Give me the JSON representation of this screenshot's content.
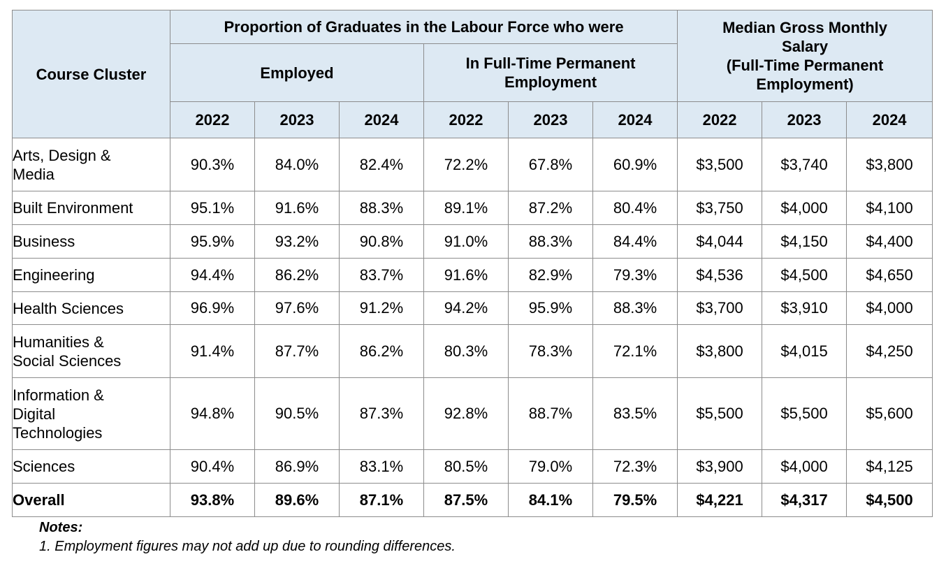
{
  "table": {
    "header": {
      "course_cluster": "Course Cluster",
      "proportion_group": "Proportion of Graduates in the Labour Force who were",
      "employed": "Employed",
      "ftpe_line1": "In Full-Time Permanent",
      "ftpe_line2": "Employment",
      "salary_line1": "Median Gross Monthly",
      "salary_line2": "Salary",
      "salary_line3": "(Full-Time Permanent",
      "salary_line4": "Employment)",
      "years": [
        "2022",
        "2023",
        "2024",
        "2022",
        "2023",
        "2024",
        "2022",
        "2023",
        "2024"
      ]
    },
    "rows": [
      {
        "name": [
          "Arts, Design &",
          "Media"
        ],
        "values": [
          "90.3%",
          "84.0%",
          "82.4%",
          "72.2%",
          "67.8%",
          "60.9%",
          "$3,500",
          "$3,740",
          "$3,800"
        ]
      },
      {
        "name": [
          "Built Environment"
        ],
        "values": [
          "95.1%",
          "91.6%",
          "88.3%",
          "89.1%",
          "87.2%",
          "80.4%",
          "$3,750",
          "$4,000",
          "$4,100"
        ]
      },
      {
        "name": [
          "Business"
        ],
        "values": [
          "95.9%",
          "93.2%",
          "90.8%",
          "91.0%",
          "88.3%",
          "84.4%",
          "$4,044",
          "$4,150",
          "$4,400"
        ]
      },
      {
        "name": [
          "Engineering"
        ],
        "values": [
          "94.4%",
          "86.2%",
          "83.7%",
          "91.6%",
          "82.9%",
          "79.3%",
          "$4,536",
          "$4,500",
          "$4,650"
        ]
      },
      {
        "name": [
          "Health Sciences"
        ],
        "values": [
          "96.9%",
          "97.6%",
          "91.2%",
          "94.2%",
          "95.9%",
          "88.3%",
          "$3,700",
          "$3,910",
          "$4,000"
        ]
      },
      {
        "name": [
          "Humanities &",
          "Social Sciences"
        ],
        "values": [
          "91.4%",
          "87.7%",
          "86.2%",
          "80.3%",
          "78.3%",
          "72.1%",
          "$3,800",
          "$4,015",
          "$4,250"
        ]
      },
      {
        "name": [
          "Information &",
          "Digital",
          "Technologies"
        ],
        "values": [
          "94.8%",
          "90.5%",
          "87.3%",
          "92.8%",
          "88.7%",
          "83.5%",
          "$5,500",
          "$5,500",
          "$5,600"
        ]
      },
      {
        "name": [
          "Sciences"
        ],
        "values": [
          "90.4%",
          "86.9%",
          "83.1%",
          "80.5%",
          "79.0%",
          "72.3%",
          "$3,900",
          "$4,000",
          "$4,125"
        ]
      },
      {
        "name": [
          "Overall"
        ],
        "values": [
          "93.8%",
          "89.6%",
          "87.1%",
          "87.5%",
          "84.1%",
          "79.5%",
          "$4,221",
          "$4,317",
          "$4,500"
        ],
        "overall": true
      }
    ]
  },
  "notes": {
    "title": "Notes:",
    "line1": "1. Employment figures may not add up due to rounding differences."
  }
}
